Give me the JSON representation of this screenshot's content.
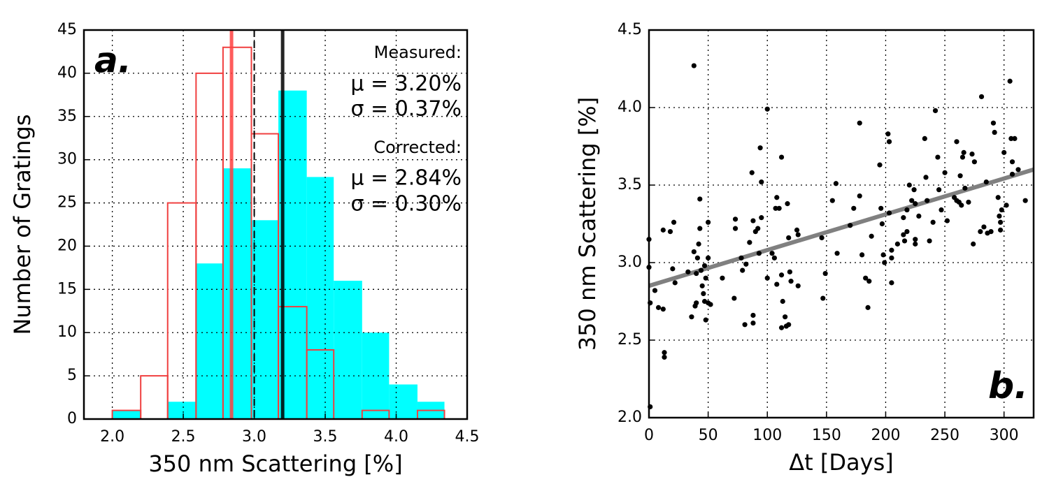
{
  "chart_data": [
    {
      "type": "histogram",
      "xlabel": "350 nm Scattering [%]",
      "ylabel": "Number of Gratings",
      "bins": [
        2.0,
        2.2,
        2.39,
        2.59,
        2.78,
        2.98,
        3.17,
        3.37,
        3.56,
        3.76,
        3.95,
        4.15,
        4.34
      ],
      "series": [
        {
          "name": "Measured",
          "color": "#00ffff",
          "style": "filled",
          "values": [
            1,
            0,
            2,
            18,
            29,
            23,
            38,
            28,
            16,
            10,
            4,
            2
          ]
        },
        {
          "name": "Corrected",
          "color": "#f04040",
          "style": "step",
          "values": [
            1,
            5,
            25,
            40,
            43,
            33,
            13,
            8,
            0,
            1,
            0,
            1
          ]
        }
      ],
      "vlines": [
        {
          "value": 2.84,
          "color": "#ff4040",
          "style": "solid"
        },
        {
          "value": 3.0,
          "color": "#000000",
          "style": "dashed"
        },
        {
          "value": 3.2,
          "color": "#000000",
          "style": "solid"
        }
      ],
      "annotations": [
        {
          "text": "a.",
          "color": "#000000"
        },
        {
          "text": "Measured:",
          "color": "#000000"
        },
        {
          "text": "μ = 3.20%",
          "color": "#000000"
        },
        {
          "text": "σ = 0.37%",
          "color": "#000000"
        },
        {
          "text": "Corrected:",
          "color": "#ff0000"
        },
        {
          "text": "μ = 2.84%",
          "color": "#ff0000"
        },
        {
          "text": "σ = 0.30%",
          "color": "#ff0000"
        }
      ],
      "xlim": [
        1.8,
        4.5
      ],
      "xticks": [
        {
          "value": 2,
          "label": "2.0"
        },
        {
          "value": 2.5,
          "label": "2.5"
        },
        {
          "value": 3,
          "label": "3.0"
        },
        {
          "value": 3.5,
          "label": "3.5"
        },
        {
          "value": 4,
          "label": "4.0"
        },
        4.5
      ],
      "ylim": [
        0,
        45
      ],
      "yticks": [
        0,
        5,
        10,
        15,
        20,
        25,
        30,
        35,
        40,
        45
      ],
      "grid": true
    },
    {
      "type": "scatter",
      "xlabel": "Δt [Days]",
      "ylabel": "350 nm Scattering [%]",
      "color": "#000000",
      "x": [
        0,
        0,
        1,
        1,
        5,
        8,
        12,
        12,
        13,
        13,
        18,
        20,
        21,
        22,
        33,
        36,
        38,
        38,
        39,
        40,
        40,
        41,
        42,
        43,
        43,
        44,
        45,
        46,
        47,
        47,
        48,
        48,
        50,
        50,
        50,
        52,
        62,
        72,
        73,
        73,
        78,
        79,
        81,
        82,
        85,
        87,
        88,
        88,
        88,
        90,
        92,
        93,
        94,
        95,
        95,
        100,
        100,
        104,
        106,
        107,
        108,
        108,
        110,
        112,
        112,
        112,
        113,
        115,
        116,
        117,
        118,
        118,
        119,
        120,
        125,
        126,
        126,
        146,
        147,
        149,
        155,
        158,
        159,
        170,
        173,
        178,
        178,
        180,
        183,
        185,
        186,
        188,
        195,
        196,
        197,
        198,
        199,
        202,
        203,
        203,
        205,
        205,
        205,
        210,
        215,
        215,
        216,
        218,
        218,
        220,
        222,
        224,
        225,
        225,
        225,
        228,
        233,
        234,
        235,
        237,
        240,
        242,
        244,
        245,
        247,
        250,
        252,
        258,
        260,
        260,
        262,
        263,
        264,
        265,
        266,
        267,
        270,
        273,
        274,
        275,
        280,
        281,
        283,
        285,
        286,
        289,
        291,
        292,
        295,
        296,
        297,
        297,
        298,
        300,
        302,
        305,
        306,
        307,
        307,
        309,
        312,
        318
      ],
      "y": [
        3.15,
        2.97,
        2.74,
        2.07,
        2.82,
        2.71,
        2.7,
        3.21,
        2.42,
        2.39,
        3.2,
        2.96,
        3.26,
        2.87,
        2.94,
        2.65,
        4.27,
        3.07,
        2.72,
        2.74,
        2.93,
        3.03,
        3.12,
        3.22,
        3.41,
        2.95,
        2.85,
        2.8,
        2.98,
        2.75,
        2.63,
        2.9,
        2.74,
        3.26,
        3.03,
        2.73,
        2.9,
        2.77,
        3.28,
        3.22,
        3.03,
        2.95,
        2.6,
        2.99,
        3.13,
        3.58,
        2.66,
        2.61,
        3.27,
        3.2,
        3.22,
        3.06,
        3.74,
        3.52,
        3.29,
        3.99,
        2.9,
        3.06,
        3.03,
        3.35,
        3.42,
        2.86,
        3.35,
        3.68,
        2.92,
        2.58,
        2.75,
        2.65,
        2.59,
        3.38,
        3.16,
        2.6,
        2.94,
        2.88,
        3.21,
        3.18,
        2.85,
        3.16,
        2.77,
        2.93,
        3.4,
        3.51,
        3.06,
        3.24,
        3.35,
        3.43,
        3.9,
        3.05,
        2.9,
        2.71,
        2.88,
        3.17,
        3.63,
        3.35,
        3.25,
        3.05,
        3.0,
        3.83,
        3.78,
        3.32,
        3.08,
        3.03,
        2.87,
        3.12,
        3.29,
        3.18,
        3.14,
        3.34,
        3.2,
        3.5,
        3.4,
        3.47,
        3.15,
        3.12,
        3.38,
        3.3,
        3.8,
        3.55,
        3.4,
        3.14,
        3.26,
        3.98,
        3.68,
        3.47,
        3.34,
        3.58,
        3.27,
        3.42,
        3.4,
        3.78,
        3.39,
        3.56,
        3.37,
        3.68,
        3.71,
        3.48,
        3.39,
        3.7,
        3.12,
        3.65,
        3.2,
        4.07,
        3.23,
        3.52,
        3.19,
        3.2,
        3.9,
        3.84,
        3.42,
        3.3,
        3.21,
        3.26,
        3.34,
        3.71,
        3.37,
        4.17,
        3.8,
        3.57,
        3.65,
        3.8,
        3.6,
        3.4
      ],
      "fit": {
        "x": [
          0,
          325
        ],
        "y": [
          2.85,
          3.6
        ],
        "color": "#808080"
      },
      "annotations": [
        {
          "text": "b.",
          "color": "#000000"
        }
      ],
      "xlim": [
        0,
        325
      ],
      "xticks": [
        0,
        50,
        100,
        150,
        200,
        250,
        300
      ],
      "ylim": [
        2.0,
        4.5
      ],
      "yticks": [
        {
          "value": 2,
          "label": "2.0"
        },
        2.5,
        {
          "value": 3,
          "label": "3.0"
        },
        3.5,
        {
          "value": 4,
          "label": "4.0"
        },
        4.5
      ],
      "grid": true
    }
  ]
}
